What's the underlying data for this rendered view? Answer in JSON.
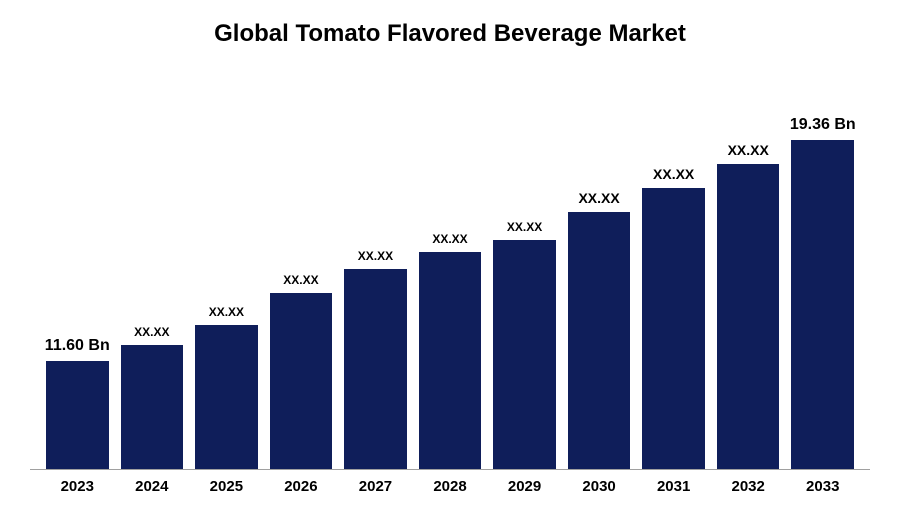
{
  "chart": {
    "type": "bar",
    "title": "Global Tomato Flavored Beverage Market",
    "title_fontsize": 24,
    "title_color": "#000000",
    "background_color": "#ffffff",
    "bar_color": "#0f1e5a",
    "axis_color": "#a0a0a0",
    "ylim_max": 22,
    "categories": [
      "2023",
      "2024",
      "2025",
      "2026",
      "2027",
      "2028",
      "2029",
      "2030",
      "2031",
      "2032",
      "2033"
    ],
    "values": [
      11.6,
      12.2,
      12.9,
      13.7,
      14.5,
      15.3,
      16.1,
      17.0,
      17.8,
      18.6,
      19.36
    ],
    "value_display_heights_pct": [
      27,
      31,
      36,
      44,
      50,
      54,
      57,
      64,
      70,
      76,
      82
    ],
    "bar_labels": [
      "11.60 Bn",
      "XX.XX",
      "XX.XX",
      "XX.XX",
      "XX.XX",
      "XX.XX",
      "XX.XX",
      "XX.XX",
      "XX.XX",
      "XX.XX",
      "19.36 Bn"
    ],
    "bar_label_fontsizes": [
      16,
      12,
      12,
      12,
      12,
      12,
      12,
      14,
      14,
      14,
      16
    ],
    "x_tick_fontsize": 15,
    "x_tick_color": "#000000",
    "bar_width_ratio": 0.78
  }
}
